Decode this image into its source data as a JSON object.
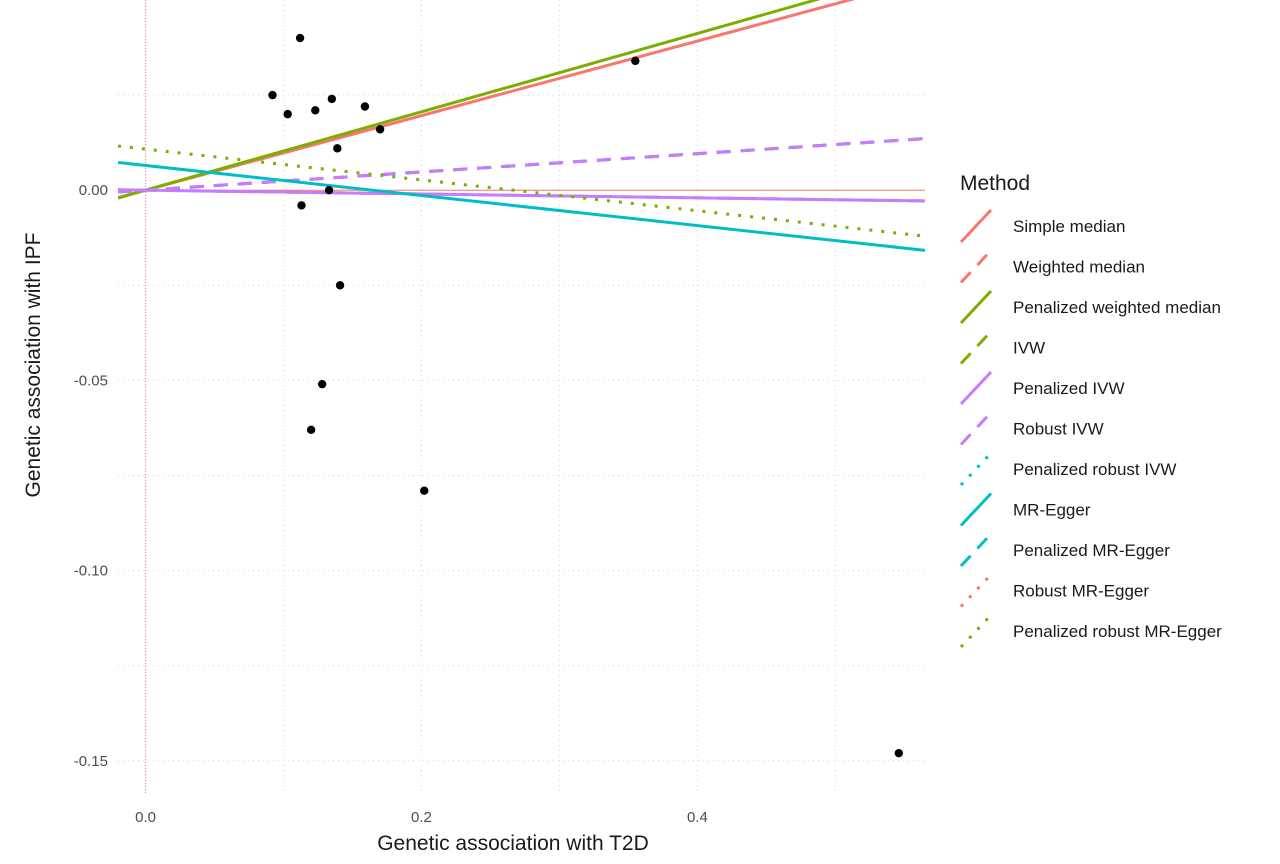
{
  "chart_data": {
    "type": "scatter",
    "xlabel": "Genetic association with T2D",
    "ylabel": "Genetic association with IPF",
    "xlim": [
      -0.02,
      0.565
    ],
    "ylim": [
      -0.159,
      0.05
    ],
    "x_ticks": [
      0.0,
      0.2,
      0.4
    ],
    "x_tick_labels": [
      "0.0",
      "0.2",
      "0.4"
    ],
    "y_ticks": [
      0.0,
      -0.05,
      -0.1,
      -0.15
    ],
    "y_tick_labels": [
      "0.00",
      "-0.05",
      "-0.10",
      "-0.15"
    ],
    "grid": true,
    "reference_lines": {
      "x": 0,
      "y": 0,
      "color": "#f8766d"
    },
    "points": [
      {
        "x": 0.092,
        "y": 0.025
      },
      {
        "x": 0.103,
        "y": 0.02
      },
      {
        "x": 0.112,
        "y": 0.04
      },
      {
        "x": 0.113,
        "y": -0.004
      },
      {
        "x": 0.12,
        "y": -0.063
      },
      {
        "x": 0.123,
        "y": 0.021
      },
      {
        "x": 0.128,
        "y": -0.051
      },
      {
        "x": 0.133,
        "y": 0.0
      },
      {
        "x": 0.135,
        "y": 0.024
      },
      {
        "x": 0.139,
        "y": 0.011
      },
      {
        "x": 0.141,
        "y": -0.025
      },
      {
        "x": 0.159,
        "y": 0.022
      },
      {
        "x": 0.17,
        "y": 0.016
      },
      {
        "x": 0.202,
        "y": -0.079
      },
      {
        "x": 0.355,
        "y": 0.034
      },
      {
        "x": 0.546,
        "y": -0.148
      }
    ],
    "legend": {
      "title": "Method",
      "placement": "right",
      "items": [
        {
          "name": "Simple median",
          "color": "#f8766d",
          "dash": "solid"
        },
        {
          "name": "Weighted median",
          "color": "#f8766d",
          "dash": "dashed"
        },
        {
          "name": "Penalized weighted median",
          "color": "#7cae00",
          "dash": "solid"
        },
        {
          "name": "IVW",
          "color": "#7cae00",
          "dash": "dashed"
        },
        {
          "name": "Penalized IVW",
          "color": "#c77cff",
          "dash": "solid"
        },
        {
          "name": "Robust IVW",
          "color": "#c77cff",
          "dash": "dashed"
        },
        {
          "name": "Penalized robust IVW",
          "color": "#00bfc4",
          "dash": "dotted"
        },
        {
          "name": "MR-Egger",
          "color": "#00bfc4",
          "dash": "solid"
        },
        {
          "name": "Penalized MR-Egger",
          "color": "#00bfc4",
          "dash": "dashed"
        },
        {
          "name": "Robust MR-Egger",
          "color": "#f8766d",
          "dash": "dotted"
        },
        {
          "name": "Penalized robust MR-Egger",
          "color": "#7cae00",
          "dash": "dotted"
        }
      ]
    },
    "lines": [
      {
        "method": "Simple median",
        "intercept": 0.0,
        "slope": 0.098,
        "color": "#f8766d",
        "dash": "solid"
      },
      {
        "method": "Penalized weighted median",
        "intercept": 0.0,
        "slope": 0.103,
        "color": "#7cae00",
        "dash": "solid"
      },
      {
        "method": "Weighted median",
        "intercept": 0.0,
        "slope": 0.024,
        "color": "#f8766d",
        "dash": "dashed"
      },
      {
        "method": "Penalized MR-Egger",
        "intercept": 0.0,
        "slope": 0.024,
        "color": "#00bfc4",
        "dash": "dashed"
      },
      {
        "method": "Robust IVW",
        "intercept": 0.0,
        "slope": 0.024,
        "color": "#c77cff",
        "dash": "dashed"
      },
      {
        "method": "IVW",
        "intercept": 0.0,
        "slope": -0.005,
        "color": "#7cae00",
        "dash": "dashed"
      },
      {
        "method": "Penalized IVW",
        "intercept": 0.0,
        "slope": -0.005,
        "color": "#c77cff",
        "dash": "solid"
      },
      {
        "method": "MR-Egger",
        "intercept": 0.0065,
        "slope": -0.0395,
        "color": "#00bfc4",
        "dash": "solid"
      },
      {
        "method": "Penalized robust MR-Egger",
        "intercept": 0.0108,
        "slope": -0.0405,
        "color": "#7cae00",
        "dash": "dotted"
      }
    ]
  }
}
